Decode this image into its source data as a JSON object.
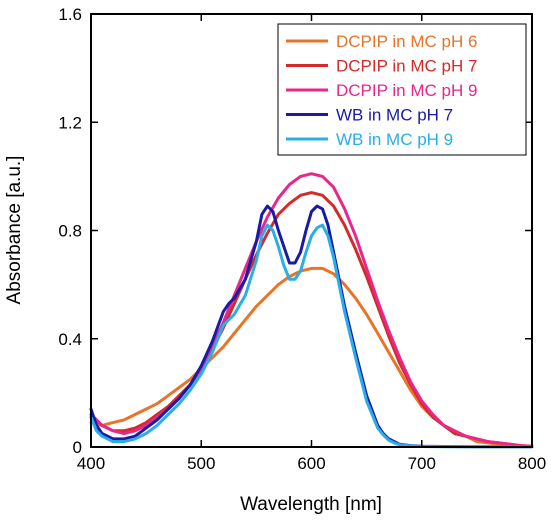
{
  "chart_data": {
    "type": "line",
    "title": "",
    "xlabel": "Wavelength [nm]",
    "ylabel": "Absorbance [a.u.]",
    "xlim": [
      400,
      800
    ],
    "ylim": [
      0,
      1.6
    ],
    "x_ticks": [
      "400",
      "500",
      "600",
      "700",
      "800"
    ],
    "y_ticks": [
      "0",
      "0.4",
      "0.8",
      "1.2",
      "1.6"
    ],
    "x_tick_values": [
      400,
      500,
      600,
      700,
      800
    ],
    "y_tick_values": [
      0,
      0.4,
      0.8,
      1.2,
      1.6
    ],
    "grid": false,
    "legend_position": "top-right",
    "series": [
      {
        "name": "DCPIP in MC pH 6",
        "color": "#e8742a",
        "x": [
          400,
          410,
          420,
          430,
          440,
          450,
          460,
          470,
          480,
          490,
          500,
          510,
          520,
          530,
          540,
          550,
          560,
          570,
          580,
          590,
          600,
          610,
          620,
          630,
          640,
          650,
          660,
          670,
          680,
          690,
          700,
          710,
          720,
          730,
          740,
          750,
          760,
          770,
          780,
          790,
          800
        ],
        "y": [
          0.09,
          0.08,
          0.09,
          0.1,
          0.12,
          0.14,
          0.16,
          0.19,
          0.22,
          0.25,
          0.29,
          0.33,
          0.37,
          0.42,
          0.47,
          0.52,
          0.56,
          0.6,
          0.63,
          0.65,
          0.66,
          0.66,
          0.64,
          0.6,
          0.55,
          0.49,
          0.42,
          0.35,
          0.28,
          0.21,
          0.15,
          0.11,
          0.08,
          0.05,
          0.04,
          0.02,
          0.015,
          0.01,
          0.005,
          0.003,
          0.002
        ]
      },
      {
        "name": "DCPIP in MC pH 7",
        "color": "#d42a2a",
        "x": [
          400,
          410,
          420,
          430,
          440,
          450,
          460,
          470,
          480,
          490,
          500,
          510,
          520,
          530,
          540,
          550,
          560,
          570,
          580,
          590,
          600,
          610,
          620,
          630,
          640,
          650,
          660,
          670,
          680,
          690,
          700,
          710,
          720,
          730,
          740,
          750,
          760,
          770,
          780,
          790,
          800
        ],
        "y": [
          0.12,
          0.08,
          0.06,
          0.06,
          0.07,
          0.09,
          0.12,
          0.15,
          0.19,
          0.23,
          0.29,
          0.36,
          0.44,
          0.53,
          0.62,
          0.71,
          0.79,
          0.86,
          0.9,
          0.93,
          0.94,
          0.93,
          0.89,
          0.82,
          0.73,
          0.63,
          0.52,
          0.41,
          0.31,
          0.23,
          0.16,
          0.11,
          0.08,
          0.05,
          0.04,
          0.03,
          0.02,
          0.015,
          0.01,
          0.005,
          0.003
        ]
      },
      {
        "name": "DCPIP in MC pH 9",
        "color": "#e8278a",
        "x": [
          400,
          410,
          420,
          430,
          440,
          450,
          460,
          470,
          480,
          490,
          500,
          510,
          520,
          530,
          540,
          550,
          560,
          570,
          580,
          590,
          600,
          610,
          620,
          630,
          640,
          650,
          660,
          670,
          680,
          690,
          700,
          710,
          720,
          730,
          740,
          750,
          760,
          770,
          780,
          790,
          800
        ],
        "y": [
          0.12,
          0.08,
          0.06,
          0.05,
          0.06,
          0.08,
          0.11,
          0.14,
          0.18,
          0.23,
          0.29,
          0.37,
          0.46,
          0.56,
          0.66,
          0.76,
          0.85,
          0.92,
          0.97,
          1.0,
          1.01,
          1.0,
          0.96,
          0.88,
          0.78,
          0.66,
          0.54,
          0.43,
          0.33,
          0.24,
          0.17,
          0.12,
          0.08,
          0.06,
          0.04,
          0.03,
          0.02,
          0.015,
          0.01,
          0.005,
          0.003
        ]
      },
      {
        "name": "WB in MC pH 7",
        "color": "#1a1aa8",
        "x": [
          400,
          405,
          410,
          420,
          430,
          440,
          450,
          460,
          470,
          480,
          490,
          500,
          510,
          520,
          525,
          530,
          540,
          550,
          555,
          560,
          565,
          570,
          575,
          580,
          585,
          590,
          595,
          600,
          605,
          610,
          615,
          620,
          625,
          630,
          640,
          650,
          660,
          665,
          670,
          675,
          680,
          690,
          700,
          720,
          750,
          800
        ],
        "y": [
          0.14,
          0.08,
          0.05,
          0.03,
          0.03,
          0.04,
          0.07,
          0.1,
          0.14,
          0.18,
          0.23,
          0.3,
          0.39,
          0.5,
          0.53,
          0.55,
          0.62,
          0.76,
          0.86,
          0.89,
          0.87,
          0.8,
          0.74,
          0.68,
          0.68,
          0.72,
          0.8,
          0.87,
          0.89,
          0.88,
          0.82,
          0.72,
          0.62,
          0.52,
          0.35,
          0.19,
          0.08,
          0.05,
          0.03,
          0.02,
          0.01,
          0.005,
          0.003,
          0.002,
          0.001,
          0.001
        ]
      },
      {
        "name": "WB in MC pH 9",
        "color": "#2aaee8",
        "x": [
          400,
          405,
          410,
          420,
          430,
          440,
          450,
          460,
          470,
          480,
          490,
          500,
          510,
          520,
          525,
          530,
          540,
          550,
          555,
          560,
          565,
          570,
          575,
          580,
          585,
          590,
          595,
          600,
          605,
          610,
          615,
          620,
          625,
          630,
          640,
          650,
          660,
          665,
          670,
          675,
          680,
          690,
          700,
          720,
          750,
          800
        ],
        "y": [
          0.11,
          0.06,
          0.04,
          0.02,
          0.02,
          0.03,
          0.05,
          0.08,
          0.12,
          0.16,
          0.21,
          0.27,
          0.35,
          0.45,
          0.47,
          0.49,
          0.56,
          0.69,
          0.78,
          0.82,
          0.8,
          0.74,
          0.67,
          0.62,
          0.62,
          0.65,
          0.72,
          0.78,
          0.81,
          0.82,
          0.78,
          0.7,
          0.6,
          0.5,
          0.33,
          0.17,
          0.07,
          0.045,
          0.025,
          0.015,
          0.008,
          0.004,
          0.002,
          0.001,
          0.001,
          0.001
        ]
      }
    ]
  }
}
